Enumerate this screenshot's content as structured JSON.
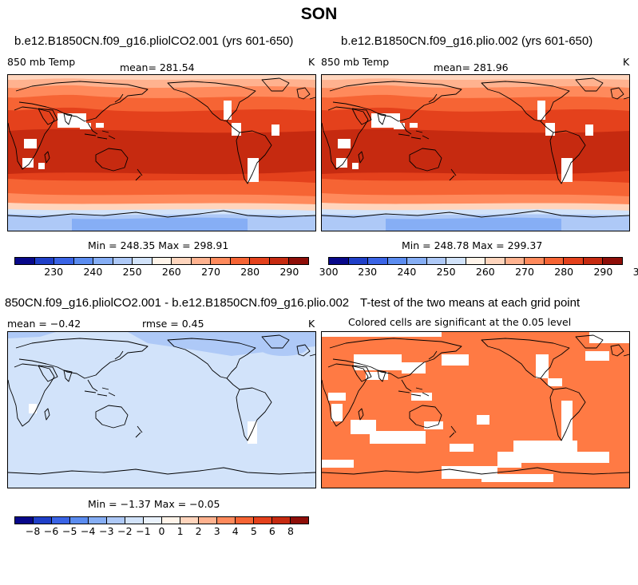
{
  "figure": {
    "title": "SON"
  },
  "panels": {
    "p1": {
      "title": "b.e12.B1850CN.f09_g16.pliolCO2.001 (yrs 601-650)",
      "variable": "850 mb Temp",
      "mean": "mean= 281.54",
      "units": "K",
      "minmax": "Min = 248.35 Max = 298.91"
    },
    "p2": {
      "title": "b.e12.B1850CN.f09_g16.plio.002 (yrs 601-650)",
      "variable": "850 mb Temp",
      "mean": "mean= 281.96",
      "units": "K",
      "minmax": "Min = 248.78 Max = 299.37"
    },
    "p3": {
      "title": "850CN.f09_g16.pliolCO2.001 - b.e12.B1850CN.f09_g16.plio.002",
      "mean": "mean =  −0.42",
      "rmse": "rmse =   0.45",
      "units": "K",
      "minmax": "Min =  −1.37 Max =  −0.05"
    },
    "p4": {
      "title": "T-test of the two means at each grid point",
      "subtitle": "Colored cells are significant at the 0.05 level"
    }
  },
  "colorbars": {
    "temp": {
      "labels": [
        "230",
        "240",
        "250",
        "260",
        "270",
        "280",
        "290",
        "300"
      ],
      "colors": [
        "#08088a",
        "#1f3fc8",
        "#3a64e6",
        "#5b8cf0",
        "#86aef5",
        "#aec9f7",
        "#d2e3fa",
        "#fff4ea",
        "#ffd5bd",
        "#ffb28f",
        "#ff8a5c",
        "#f66434",
        "#e4411c",
        "#c62a10",
        "#8e0e08"
      ]
    },
    "diff": {
      "labels": [
        "−8",
        "−6",
        "−5",
        "−4",
        "−3",
        "−2",
        "−1",
        "0",
        "1",
        "2",
        "3",
        "4",
        "5",
        "6",
        "8"
      ],
      "colors": [
        "#08088a",
        "#1f3fc8",
        "#3a64e6",
        "#5b8cf0",
        "#86aef5",
        "#aec9f7",
        "#d2e3fa",
        "#eaf2fc",
        "#fff4ea",
        "#ffd5bd",
        "#ffb28f",
        "#ff8a5c",
        "#f66434",
        "#e4411c",
        "#c62a10",
        "#8e0e08"
      ]
    }
  }
}
